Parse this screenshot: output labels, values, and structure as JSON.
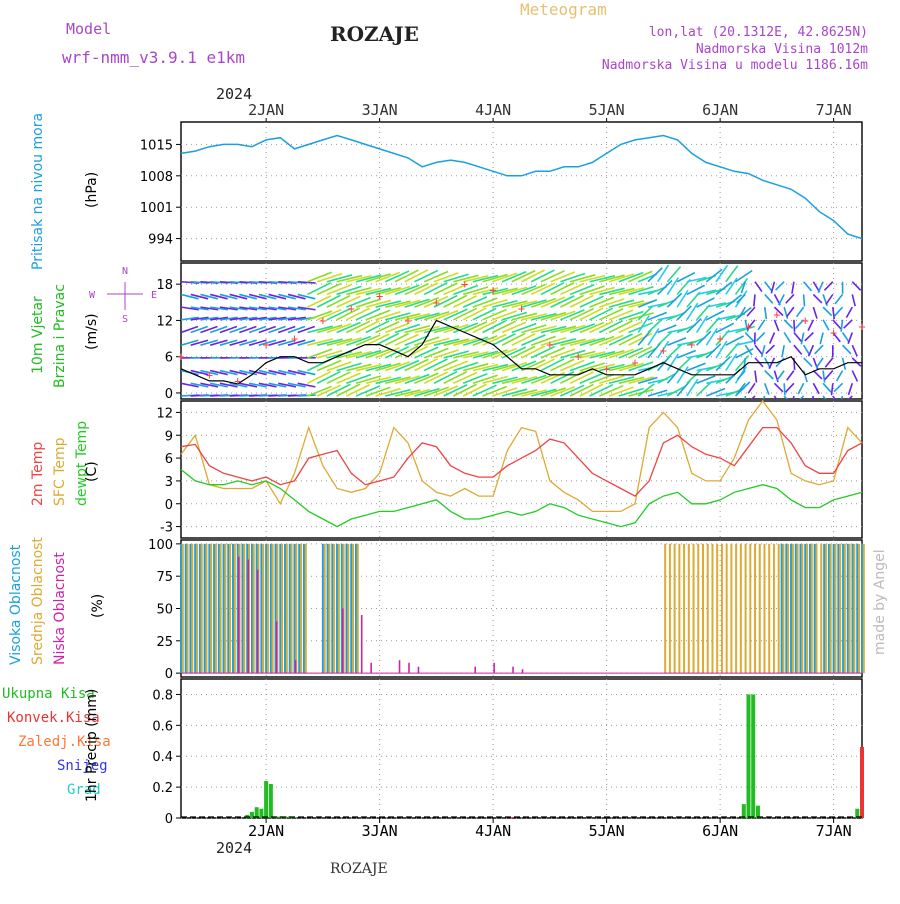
{
  "header": {
    "model_label": "Model",
    "model_value": "wrf-nmm_v3.9.1  e1km",
    "title": "ROZAJE",
    "meteogram": "Meteogram",
    "lonlat": "lon,lat (20.1312E, 42.8625N)",
    "elev": "Nadmorska Visina 1012m",
    "model_elev": "Nadmorska Visina u modelu 1186.16m",
    "year": "2024",
    "bottom_title": "ROZAJE",
    "credit": "made by Angel"
  },
  "colors": {
    "pressure": "#1aa0e0",
    "wind_speed": "#000000",
    "gust": "#ff4040",
    "t2m": "#ee4444",
    "tsfc": "#ddaa33",
    "dewpoint": "#22cc22",
    "cloud_high": "#1aa0e0",
    "cloud_mid": "#ddaa33",
    "cloud_low": "#cc22aa",
    "precip_total": "#22bb22",
    "precip_conv": "#ee3333",
    "precip_frz": "#ff7733",
    "precip_snow": "#3333ff",
    "precip_hail": "#22cccc",
    "purple_text": "#aa44cc",
    "meteogram_text": "#e8c070"
  },
  "time_axis": {
    "labels": [
      "2JAN",
      "3JAN",
      "4JAN",
      "5JAN",
      "6JAN",
      "7JAN"
    ],
    "year": "2024",
    "start_hour": -6,
    "end_hour": 138
  },
  "chart_data": [
    {
      "type": "line",
      "title": "",
      "ylabel": "Pritisak na nivou mora",
      "unit": "(hPa)",
      "ylim": [
        989,
        1020
      ],
      "yticks": [
        994,
        1001,
        1008,
        1015
      ],
      "series": [
        {
          "name": "Pritisak na nivou mora",
          "x_hours": [
            -6,
            -3,
            0,
            3,
            6,
            9,
            12,
            15,
            18,
            21,
            24,
            27,
            30,
            33,
            36,
            39,
            42,
            45,
            48,
            51,
            54,
            57,
            60,
            63,
            66,
            69,
            72,
            75,
            78,
            81,
            84,
            87,
            90,
            93,
            96,
            99,
            102,
            105,
            108,
            111,
            114,
            117,
            120,
            123,
            126,
            129,
            132,
            135,
            138
          ],
          "values": [
            1013,
            1013.5,
            1014.5,
            1015,
            1015,
            1014.5,
            1016,
            1016.5,
            1014,
            1015,
            1016,
            1017,
            1016,
            1015,
            1014,
            1013,
            1012,
            1010,
            1011,
            1011.5,
            1011,
            1010,
            1009,
            1008,
            1008,
            1009,
            1009,
            1010,
            1010,
            1011,
            1013,
            1015,
            1016,
            1016.5,
            1017,
            1016,
            1013,
            1011,
            1010,
            1009,
            1008.5,
            1007,
            1006,
            1005,
            1003,
            1000,
            998,
            995,
            994
          ]
        }
      ]
    },
    {
      "type": "line",
      "title": "",
      "ylabel": "10m Vjetar Brzina i Pravac",
      "unit": "(m/s)",
      "ylim": [
        -1,
        21.5
      ],
      "yticks": [
        0,
        6,
        12,
        18
      ],
      "compass": {
        "n": "N",
        "s": "S",
        "w": "W",
        "e": "E"
      },
      "series": [
        {
          "name": "Brzina",
          "x_hours": [
            -6,
            -3,
            0,
            3,
            6,
            9,
            12,
            15,
            18,
            21,
            24,
            27,
            30,
            33,
            36,
            39,
            42,
            45,
            48,
            51,
            54,
            57,
            60,
            63,
            66,
            69,
            72,
            75,
            78,
            81,
            84,
            87,
            90,
            93,
            96,
            99,
            102,
            105,
            108,
            111,
            114,
            117,
            120,
            123,
            126,
            129,
            132,
            135,
            138
          ],
          "values": [
            4,
            3,
            2,
            2,
            1.5,
            3,
            5,
            6,
            6,
            5,
            5,
            6,
            7,
            8,
            8,
            7,
            6,
            8,
            12,
            11,
            10,
            9,
            8,
            6,
            4,
            4,
            3,
            3,
            3,
            4,
            3,
            3,
            3,
            4,
            5,
            4,
            3,
            3,
            3,
            3,
            5,
            5,
            5,
            6,
            3,
            4,
            4,
            5,
            5
          ]
        },
        {
          "name": "Udar",
          "x_hours": [
            -6,
            0,
            6,
            12,
            18,
            24,
            30,
            36,
            42,
            48,
            54,
            60,
            66,
            72,
            78,
            84,
            90,
            96,
            102,
            108,
            114,
            120,
            126,
            132,
            138
          ],
          "values": [
            6,
            3,
            2,
            8,
            9,
            12,
            14,
            16,
            12,
            15,
            18,
            17,
            14,
            8,
            6,
            4,
            5,
            7,
            8,
            9,
            11,
            13,
            12,
            10,
            11
          ]
        }
      ]
    },
    {
      "type": "line",
      "title": "",
      "ylabel": "2m Temp / SFC Temp / dewpt Temp",
      "unit": "(C)",
      "ylim": [
        -4.5,
        13.5
      ],
      "yticks": [
        -3,
        0,
        3,
        6,
        9,
        12
      ],
      "series": [
        {
          "name": "2m Temp",
          "x_hours": [
            -6,
            -3,
            0,
            3,
            6,
            9,
            12,
            15,
            18,
            21,
            24,
            27,
            30,
            33,
            36,
            39,
            42,
            45,
            48,
            51,
            54,
            57,
            60,
            63,
            66,
            69,
            72,
            75,
            78,
            81,
            84,
            87,
            90,
            93,
            96,
            99,
            102,
            105,
            108,
            111,
            114,
            117,
            120,
            123,
            126,
            129,
            132,
            135,
            138
          ],
          "values": [
            7.5,
            7.8,
            5.0,
            4.0,
            3.5,
            3.0,
            3.5,
            2.5,
            3.0,
            6.0,
            6.5,
            7.0,
            4.0,
            2.5,
            3.0,
            3.5,
            6.0,
            8.0,
            7.5,
            5.0,
            4.0,
            3.5,
            3.5,
            5.0,
            6.0,
            7.0,
            8.5,
            8.0,
            6.0,
            4.0,
            3.0,
            2.0,
            1.0,
            3.0,
            8.0,
            9.0,
            7.5,
            6.5,
            6.0,
            5.0,
            7.5,
            10.0,
            10.0,
            8.0,
            5.0,
            4.0,
            4.0,
            7.0,
            8.0
          ]
        },
        {
          "name": "SFC Temp",
          "x_hours": [
            -6,
            -3,
            0,
            3,
            6,
            9,
            12,
            15,
            18,
            21,
            24,
            27,
            30,
            33,
            36,
            39,
            42,
            45,
            48,
            51,
            54,
            57,
            60,
            63,
            66,
            69,
            72,
            75,
            78,
            81,
            84,
            87,
            90,
            93,
            96,
            99,
            102,
            105,
            108,
            111,
            114,
            117,
            120,
            123,
            126,
            129,
            132,
            135,
            138
          ],
          "values": [
            6.5,
            9.0,
            2.5,
            2.0,
            2.0,
            2.0,
            3.0,
            0.0,
            4.0,
            10.0,
            5.0,
            2.0,
            1.5,
            2.0,
            4.0,
            10.0,
            8.0,
            3.0,
            1.5,
            1.0,
            2.0,
            1.0,
            1.0,
            7.0,
            10.0,
            9.5,
            3.0,
            1.5,
            0.5,
            -1.0,
            -1.0,
            -1.0,
            0.0,
            10.0,
            12.0,
            10.0,
            4.0,
            3.0,
            3.0,
            6.0,
            11.0,
            13.5,
            11.0,
            4.0,
            3.0,
            2.5,
            3.0,
            10.0,
            8.0
          ]
        },
        {
          "name": "dewpt Temp",
          "x_hours": [
            -6,
            -3,
            0,
            3,
            6,
            9,
            12,
            15,
            18,
            21,
            24,
            27,
            30,
            33,
            36,
            39,
            42,
            45,
            48,
            51,
            54,
            57,
            60,
            63,
            66,
            69,
            72,
            75,
            78,
            81,
            84,
            87,
            90,
            93,
            96,
            99,
            102,
            105,
            108,
            111,
            114,
            117,
            120,
            123,
            126,
            129,
            132,
            135,
            138
          ],
          "values": [
            4.5,
            3.0,
            2.5,
            2.5,
            3.0,
            2.5,
            3.0,
            2.0,
            0.5,
            -1.0,
            -2.0,
            -3.0,
            -2.0,
            -1.5,
            -1.0,
            -1.0,
            -0.5,
            0.0,
            0.5,
            -1.0,
            -2.0,
            -2.0,
            -1.5,
            -1.0,
            -1.5,
            -1.0,
            0.0,
            -0.5,
            -1.5,
            -2.0,
            -2.5,
            -3.0,
            -2.5,
            0.0,
            1.0,
            1.5,
            0.0,
            0.0,
            0.5,
            1.5,
            2.0,
            2.5,
            2.0,
            0.5,
            -0.5,
            -0.5,
            0.5,
            1.0,
            1.5
          ]
        }
      ]
    },
    {
      "type": "bar",
      "title": "",
      "ylabel": "Visoka Oblacnost / Srednja Oblacnost / Niska Oblacnost",
      "unit": "(%)",
      "ylim": [
        -3,
        103
      ],
      "yticks": [
        0,
        25,
        50,
        75,
        100
      ],
      "series": [
        {
          "name": "Visoka Oblacnost",
          "segments_hours": [
            [
              -6,
              20
            ],
            [
              24,
              31
            ],
            [
              121,
              128
            ],
            [
              130,
              138
            ]
          ],
          "value": 100
        },
        {
          "name": "Srednja Oblacnost",
          "segments_hours": [
            [
              -6,
              20
            ],
            [
              24,
              31
            ],
            [
              96,
              138
            ]
          ],
          "value": 100
        },
        {
          "name": "Niska Oblacnost",
          "x_hours": [
            6,
            8,
            10,
            14,
            18,
            28,
            32,
            34,
            40,
            42,
            44,
            56,
            60,
            64,
            66
          ],
          "values": [
            90,
            88,
            80,
            40,
            10,
            50,
            45,
            8,
            10,
            8,
            5,
            5,
            8,
            5,
            3
          ]
        }
      ]
    },
    {
      "type": "bar",
      "title": "",
      "ylabel": "1hr Precip",
      "unit": "(mm)",
      "ylim": [
        0,
        0.9
      ],
      "yticks": [
        0,
        0.2,
        0.4,
        0.6,
        0.8
      ],
      "legend": [
        "Ukupna Kisa",
        "Konvek.Kisa",
        "Zaledj.Kisa",
        "Snijeg",
        "Grad"
      ],
      "series": [
        {
          "name": "Ukupna Kisa",
          "x_hours": [
            8,
            9,
            10,
            11,
            12,
            13,
            14,
            15,
            16,
            17,
            18,
            113,
            114,
            115,
            116,
            137
          ],
          "values": [
            0.02,
            0.04,
            0.07,
            0.06,
            0.24,
            0.22,
            0.01,
            0.01,
            0.01,
            0.01,
            0.005,
            0.09,
            0.8,
            0.8,
            0.08,
            0.06
          ]
        },
        {
          "name": "Konvek.Kisa",
          "x_hours": [
            138,
            64
          ],
          "values": [
            0.46,
            0.005
          ]
        }
      ]
    }
  ]
}
